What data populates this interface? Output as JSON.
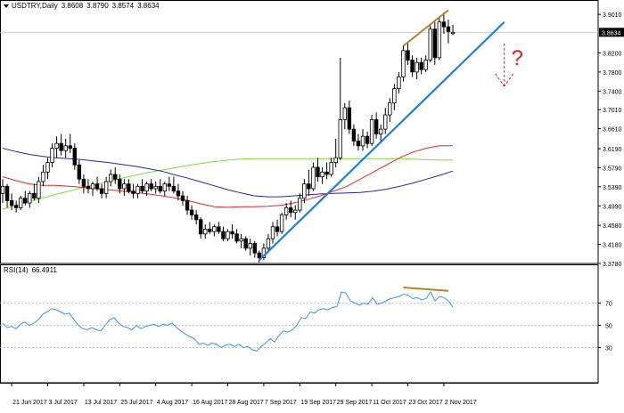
{
  "header": {
    "symbol": "USDTRY,Daily",
    "open": "3.8608",
    "high": "3.8790",
    "low": "3.8574",
    "close": "3.8634"
  },
  "rsi_header": {
    "label": "RSI(14)",
    "value": "66.4911"
  },
  "question_mark": "?",
  "colors": {
    "bull_candle": "#ffffff",
    "bear_candle": "#000000",
    "ma_short": "#e32626",
    "ma_medium": "#1f2ba0",
    "ma_long": "#7ddc3c",
    "trendline": "#1e7fd6",
    "divergence": "#b5822a",
    "rsi_line": "#3c96d8",
    "annotation": "#e01c1c"
  },
  "chart_data": [
    {
      "type": "candlestick",
      "title": "USDTRY,Daily",
      "x": [
        "21 Jun 2017",
        "3 Jul 2017",
        "13 Jul 2017",
        "25 Jul 2017",
        "4 Aug 2017",
        "16 Aug 2017",
        "28 Aug 2017",
        "7 Sep 2017",
        "19 Sep 2017",
        "29 Sep 2017",
        "11 Oct 2017",
        "23 Oct 2017",
        "2 Nov 2017"
      ],
      "ylim": [
        3.378,
        3.92
      ],
      "yticks": [
        3.901,
        3.8634,
        3.82,
        3.78,
        3.74,
        3.701,
        3.661,
        3.619,
        3.579,
        3.539,
        3.499,
        3.458,
        3.418,
        3.378
      ],
      "last_price": 3.8634,
      "grid": false,
      "candles": [
        {
          "date": "2017-06-19",
          "o": 3.525,
          "h": 3.555,
          "l": 3.505,
          "c": 3.54
        },
        {
          "date": "2017-06-20",
          "o": 3.54,
          "h": 3.545,
          "l": 3.495,
          "c": 3.51
        },
        {
          "date": "2017-06-21",
          "o": 3.51,
          "h": 3.525,
          "l": 3.49,
          "c": 3.5
        },
        {
          "date": "2017-06-22",
          "o": 3.5,
          "h": 3.51,
          "l": 3.485,
          "c": 3.495
        },
        {
          "date": "2017-06-23",
          "o": 3.495,
          "h": 3.52,
          "l": 3.49,
          "c": 3.515
        },
        {
          "date": "2017-06-26",
          "o": 3.515,
          "h": 3.53,
          "l": 3.5,
          "c": 3.505
        },
        {
          "date": "2017-06-27",
          "o": 3.505,
          "h": 3.53,
          "l": 3.495,
          "c": 3.525
        },
        {
          "date": "2017-06-28",
          "o": 3.525,
          "h": 3.545,
          "l": 3.51,
          "c": 3.515
        },
        {
          "date": "2017-06-29",
          "o": 3.515,
          "h": 3.56,
          "l": 3.505,
          "c": 3.55
        },
        {
          "date": "2017-06-30",
          "o": 3.55,
          "h": 3.585,
          "l": 3.54,
          "c": 3.57
        },
        {
          "date": "2017-07-03",
          "o": 3.57,
          "h": 3.6,
          "l": 3.555,
          "c": 3.59
        },
        {
          "date": "2017-07-04",
          "o": 3.59,
          "h": 3.63,
          "l": 3.58,
          "c": 3.62
        },
        {
          "date": "2017-07-05",
          "o": 3.62,
          "h": 3.645,
          "l": 3.6,
          "c": 3.63
        },
        {
          "date": "2017-07-06",
          "o": 3.63,
          "h": 3.65,
          "l": 3.605,
          "c": 3.615
        },
        {
          "date": "2017-07-07",
          "o": 3.615,
          "h": 3.64,
          "l": 3.6,
          "c": 3.625
        },
        {
          "date": "2017-07-10",
          "o": 3.625,
          "h": 3.65,
          "l": 3.61,
          "c": 3.62
        },
        {
          "date": "2017-07-11",
          "o": 3.62,
          "h": 3.63,
          "l": 3.575,
          "c": 3.585
        },
        {
          "date": "2017-07-12",
          "o": 3.585,
          "h": 3.595,
          "l": 3.545,
          "c": 3.555
        },
        {
          "date": "2017-07-13",
          "o": 3.555,
          "h": 3.565,
          "l": 3.525,
          "c": 3.54
        },
        {
          "date": "2017-07-14",
          "o": 3.54,
          "h": 3.555,
          "l": 3.525,
          "c": 3.535
        },
        {
          "date": "2017-07-17",
          "o": 3.535,
          "h": 3.55,
          "l": 3.52,
          "c": 3.545
        },
        {
          "date": "2017-07-18",
          "o": 3.545,
          "h": 3.56,
          "l": 3.53,
          "c": 3.535
        },
        {
          "date": "2017-07-19",
          "o": 3.535,
          "h": 3.545,
          "l": 3.515,
          "c": 3.525
        },
        {
          "date": "2017-07-20",
          "o": 3.525,
          "h": 3.56,
          "l": 3.515,
          "c": 3.55
        },
        {
          "date": "2017-07-21",
          "o": 3.55,
          "h": 3.575,
          "l": 3.54,
          "c": 3.565
        },
        {
          "date": "2017-07-24",
          "o": 3.565,
          "h": 3.58,
          "l": 3.545,
          "c": 3.555
        },
        {
          "date": "2017-07-25",
          "o": 3.555,
          "h": 3.565,
          "l": 3.525,
          "c": 3.535
        },
        {
          "date": "2017-07-26",
          "o": 3.535,
          "h": 3.555,
          "l": 3.52,
          "c": 3.545
        },
        {
          "date": "2017-07-27",
          "o": 3.545,
          "h": 3.555,
          "l": 3.525,
          "c": 3.53
        },
        {
          "date": "2017-07-28",
          "o": 3.53,
          "h": 3.545,
          "l": 3.515,
          "c": 3.525
        },
        {
          "date": "2017-07-31",
          "o": 3.525,
          "h": 3.545,
          "l": 3.515,
          "c": 3.54
        },
        {
          "date": "2017-08-01",
          "o": 3.54,
          "h": 3.555,
          "l": 3.525,
          "c": 3.53
        },
        {
          "date": "2017-08-02",
          "o": 3.53,
          "h": 3.55,
          "l": 3.52,
          "c": 3.545
        },
        {
          "date": "2017-08-03",
          "o": 3.545,
          "h": 3.555,
          "l": 3.53,
          "c": 3.535
        },
        {
          "date": "2017-08-04",
          "o": 3.535,
          "h": 3.55,
          "l": 3.525,
          "c": 3.54
        },
        {
          "date": "2017-08-07",
          "o": 3.54,
          "h": 3.555,
          "l": 3.525,
          "c": 3.53
        },
        {
          "date": "2017-08-08",
          "o": 3.53,
          "h": 3.55,
          "l": 3.52,
          "c": 3.545
        },
        {
          "date": "2017-08-09",
          "o": 3.545,
          "h": 3.56,
          "l": 3.53,
          "c": 3.54
        },
        {
          "date": "2017-08-10",
          "o": 3.54,
          "h": 3.56,
          "l": 3.525,
          "c": 3.53
        },
        {
          "date": "2017-08-11",
          "o": 3.53,
          "h": 3.545,
          "l": 3.51,
          "c": 3.52
        },
        {
          "date": "2017-08-14",
          "o": 3.52,
          "h": 3.53,
          "l": 3.5,
          "c": 3.51
        },
        {
          "date": "2017-08-15",
          "o": 3.51,
          "h": 3.52,
          "l": 3.48,
          "c": 3.49
        },
        {
          "date": "2017-08-16",
          "o": 3.49,
          "h": 3.5,
          "l": 3.47,
          "c": 3.48
        },
        {
          "date": "2017-08-17",
          "o": 3.48,
          "h": 3.49,
          "l": 3.46,
          "c": 3.47
        },
        {
          "date": "2017-08-18",
          "o": 3.47,
          "h": 3.475,
          "l": 3.43,
          "c": 3.44
        },
        {
          "date": "2017-08-21",
          "o": 3.44,
          "h": 3.46,
          "l": 3.43,
          "c": 3.45
        },
        {
          "date": "2017-08-22",
          "o": 3.45,
          "h": 3.465,
          "l": 3.44,
          "c": 3.445
        },
        {
          "date": "2017-08-23",
          "o": 3.445,
          "h": 3.46,
          "l": 3.435,
          "c": 3.455
        },
        {
          "date": "2017-08-24",
          "o": 3.455,
          "h": 3.465,
          "l": 3.44,
          "c": 3.445
        },
        {
          "date": "2017-08-25",
          "o": 3.445,
          "h": 3.455,
          "l": 3.425,
          "c": 3.43
        },
        {
          "date": "2017-08-28",
          "o": 3.43,
          "h": 3.45,
          "l": 3.425,
          "c": 3.445
        },
        {
          "date": "2017-08-29",
          "o": 3.445,
          "h": 3.46,
          "l": 3.43,
          "c": 3.44
        },
        {
          "date": "2017-08-30",
          "o": 3.44,
          "h": 3.45,
          "l": 3.42,
          "c": 3.425
        },
        {
          "date": "2017-08-31",
          "o": 3.425,
          "h": 3.44,
          "l": 3.41,
          "c": 3.43
        },
        {
          "date": "2017-09-01",
          "o": 3.43,
          "h": 3.435,
          "l": 3.405,
          "c": 3.41
        },
        {
          "date": "2017-09-04",
          "o": 3.41,
          "h": 3.43,
          "l": 3.395,
          "c": 3.42
        },
        {
          "date": "2017-09-05",
          "o": 3.42,
          "h": 3.425,
          "l": 3.39,
          "c": 3.4
        },
        {
          "date": "2017-09-06",
          "o": 3.4,
          "h": 3.405,
          "l": 3.38,
          "c": 3.39
        },
        {
          "date": "2017-09-07",
          "o": 3.39,
          "h": 3.42,
          "l": 3.385,
          "c": 3.41
        },
        {
          "date": "2017-09-08",
          "o": 3.41,
          "h": 3.44,
          "l": 3.4,
          "c": 3.43
        },
        {
          "date": "2017-09-11",
          "o": 3.43,
          "h": 3.465,
          "l": 3.42,
          "c": 3.455
        },
        {
          "date": "2017-09-12",
          "o": 3.455,
          "h": 3.47,
          "l": 3.435,
          "c": 3.445
        },
        {
          "date": "2017-09-13",
          "o": 3.445,
          "h": 3.485,
          "l": 3.44,
          "c": 3.48
        },
        {
          "date": "2017-09-14",
          "o": 3.48,
          "h": 3.505,
          "l": 3.47,
          "c": 3.495
        },
        {
          "date": "2017-09-15",
          "o": 3.495,
          "h": 3.51,
          "l": 3.475,
          "c": 3.485
        },
        {
          "date": "2017-09-18",
          "o": 3.485,
          "h": 3.5,
          "l": 3.47,
          "c": 3.49
        },
        {
          "date": "2017-09-19",
          "o": 3.49,
          "h": 3.525,
          "l": 3.485,
          "c": 3.515
        },
        {
          "date": "2017-09-20",
          "o": 3.515,
          "h": 3.555,
          "l": 3.505,
          "c": 3.545
        },
        {
          "date": "2017-09-21",
          "o": 3.545,
          "h": 3.575,
          "l": 3.52,
          "c": 3.535
        },
        {
          "date": "2017-09-22",
          "o": 3.535,
          "h": 3.59,
          "l": 3.53,
          "c": 3.58
        },
        {
          "date": "2017-09-25",
          "o": 3.58,
          "h": 3.6,
          "l": 3.55,
          "c": 3.56
        },
        {
          "date": "2017-09-26",
          "o": 3.56,
          "h": 3.58,
          "l": 3.545,
          "c": 3.57
        },
        {
          "date": "2017-09-27",
          "o": 3.57,
          "h": 3.59,
          "l": 3.555,
          "c": 3.565
        },
        {
          "date": "2017-09-28",
          "o": 3.565,
          "h": 3.6,
          "l": 3.56,
          "c": 3.59
        },
        {
          "date": "2017-09-29",
          "o": 3.59,
          "h": 3.64,
          "l": 3.58,
          "c": 3.6
        },
        {
          "date": "2017-10-02",
          "o": 3.6,
          "h": 3.81,
          "l": 3.595,
          "c": 3.68
        },
        {
          "date": "2017-10-03",
          "o": 3.68,
          "h": 3.715,
          "l": 3.66,
          "c": 3.705
        },
        {
          "date": "2017-10-04",
          "o": 3.705,
          "h": 3.72,
          "l": 3.65,
          "c": 3.66
        },
        {
          "date": "2017-10-05",
          "o": 3.66,
          "h": 3.67,
          "l": 3.625,
          "c": 3.635
        },
        {
          "date": "2017-10-06",
          "o": 3.635,
          "h": 3.65,
          "l": 3.615,
          "c": 3.625
        },
        {
          "date": "2017-10-09",
          "o": 3.625,
          "h": 3.66,
          "l": 3.615,
          "c": 3.645
        },
        {
          "date": "2017-10-10",
          "o": 3.645,
          "h": 3.655,
          "l": 3.62,
          "c": 3.63
        },
        {
          "date": "2017-10-11",
          "o": 3.63,
          "h": 3.69,
          "l": 3.625,
          "c": 3.68
        },
        {
          "date": "2017-10-12",
          "o": 3.68,
          "h": 3.695,
          "l": 3.64,
          "c": 3.65
        },
        {
          "date": "2017-10-13",
          "o": 3.65,
          "h": 3.67,
          "l": 3.63,
          "c": 3.66
        },
        {
          "date": "2017-10-16",
          "o": 3.66,
          "h": 3.705,
          "l": 3.65,
          "c": 3.69
        },
        {
          "date": "2017-10-17",
          "o": 3.69,
          "h": 3.725,
          "l": 3.675,
          "c": 3.715
        },
        {
          "date": "2017-10-18",
          "o": 3.715,
          "h": 3.755,
          "l": 3.7,
          "c": 3.745
        },
        {
          "date": "2017-10-19",
          "o": 3.745,
          "h": 3.78,
          "l": 3.735,
          "c": 3.77
        },
        {
          "date": "2017-10-20",
          "o": 3.77,
          "h": 3.835,
          "l": 3.76,
          "c": 3.825
        },
        {
          "date": "2017-10-23",
          "o": 3.825,
          "h": 3.84,
          "l": 3.795,
          "c": 3.805
        },
        {
          "date": "2017-10-24",
          "o": 3.805,
          "h": 3.815,
          "l": 3.77,
          "c": 3.78
        },
        {
          "date": "2017-10-25",
          "o": 3.78,
          "h": 3.81,
          "l": 3.765,
          "c": 3.8
        },
        {
          "date": "2017-10-26",
          "o": 3.8,
          "h": 3.81,
          "l": 3.775,
          "c": 3.785
        },
        {
          "date": "2017-10-27",
          "o": 3.785,
          "h": 3.815,
          "l": 3.78,
          "c": 3.805
        },
        {
          "date": "2017-10-30",
          "o": 3.805,
          "h": 3.88,
          "l": 3.8,
          "c": 3.87
        },
        {
          "date": "2017-10-31",
          "o": 3.87,
          "h": 3.885,
          "l": 3.795,
          "c": 3.81
        },
        {
          "date": "2017-11-01",
          "o": 3.81,
          "h": 3.895,
          "l": 3.805,
          "c": 3.885
        },
        {
          "date": "2017-11-02",
          "o": 3.885,
          "h": 3.905,
          "l": 3.86,
          "c": 3.875
        },
        {
          "date": "2017-11-03",
          "o": 3.875,
          "h": 3.89,
          "l": 3.84,
          "c": 3.865
        },
        {
          "date": "2017-11-06",
          "o": 3.8608,
          "h": 3.879,
          "l": 3.8574,
          "c": 3.8634
        }
      ],
      "overlays": [
        {
          "color": "#7ddc3c",
          "values": [
            3.492,
            3.5,
            3.508,
            3.515,
            3.523,
            3.53,
            3.537,
            3.544,
            3.55,
            3.557,
            3.563,
            3.569,
            3.574,
            3.579,
            3.584,
            3.588,
            3.592,
            3.595,
            3.597,
            3.598,
            3.598,
            3.598,
            3.598,
            3.598,
            3.598,
            3.598,
            3.598,
            3.598,
            3.598,
            3.598,
            3.598,
            3.597,
            3.596,
            3.595,
            3.595
          ]
        },
        {
          "color": "#1f2ba0",
          "values": [
            3.62,
            3.613,
            3.607,
            3.603,
            3.6,
            3.598,
            3.596,
            3.593,
            3.59,
            3.586,
            3.582,
            3.577,
            3.572,
            3.564,
            3.557,
            3.549,
            3.541,
            3.533,
            3.526,
            3.52,
            3.518,
            3.518,
            3.52,
            3.522,
            3.524,
            3.525,
            3.526,
            3.527,
            3.53,
            3.534,
            3.54,
            3.547,
            3.555,
            3.563,
            3.572
          ]
        },
        {
          "color": "#e32626",
          "values": [
            3.56,
            3.552,
            3.545,
            3.542,
            3.542,
            3.54,
            3.538,
            3.535,
            3.533,
            3.53,
            3.527,
            3.524,
            3.52,
            3.516,
            3.51,
            3.503,
            3.497,
            3.496,
            3.497,
            3.497,
            3.498,
            3.5,
            3.505,
            3.512,
            3.52,
            3.53,
            3.54,
            3.555,
            3.57,
            3.585,
            3.6,
            3.612,
            3.62,
            3.625,
            3.625
          ]
        }
      ],
      "annotations": [
        {
          "type": "trendline",
          "from": {
            "date": "2017-09-06",
            "y": 3.385
          },
          "to": {
            "date": "2017-11-22",
            "y": 3.885
          }
        },
        {
          "type": "divergence-line",
          "from": {
            "date": "2017-10-20",
            "y": 3.835
          },
          "to": {
            "date": "2017-11-03",
            "y": 3.91
          }
        },
        {
          "type": "dashed-arrow-down",
          "from": {
            "date": "2017-11-22",
            "y": 3.84
          },
          "to": {
            "date": "2017-11-22",
            "y": 3.75
          }
        },
        {
          "type": "label",
          "date": "2017-11-26",
          "y": 3.795
        }
      ]
    },
    {
      "type": "line",
      "title": "RSI(14)",
      "ylim": [
        0,
        100
      ],
      "yticks": [
        70,
        50,
        30
      ],
      "last_value": 66.4911,
      "values": [
        52,
        48,
        49,
        47,
        51,
        53,
        50,
        52,
        55,
        60,
        62,
        65,
        64,
        62,
        60,
        61,
        55,
        50,
        47,
        46,
        48,
        46,
        45,
        50,
        55,
        57,
        52,
        49,
        48,
        46,
        50,
        47,
        49,
        50,
        51,
        49,
        51,
        50,
        52,
        48,
        45,
        42,
        40,
        38,
        33,
        34,
        32,
        34,
        33,
        30,
        32,
        33,
        31,
        33,
        30,
        31,
        28,
        27,
        31,
        34,
        38,
        35,
        41,
        45,
        44,
        46,
        50,
        57,
        56,
        62,
        61,
        64,
        65,
        64,
        66,
        67,
        80,
        79,
        72,
        70,
        68,
        70,
        69,
        75,
        69,
        70,
        72,
        74,
        75,
        76,
        78,
        77,
        74,
        75,
        73,
        74,
        80,
        72,
        76,
        75,
        72,
        66.4911
      ],
      "annotations": [
        {
          "type": "divergence-line",
          "from": {
            "date": "2017-10-20",
            "y": 84
          },
          "to": {
            "date": "2017-11-03",
            "y": 81
          }
        }
      ]
    }
  ]
}
